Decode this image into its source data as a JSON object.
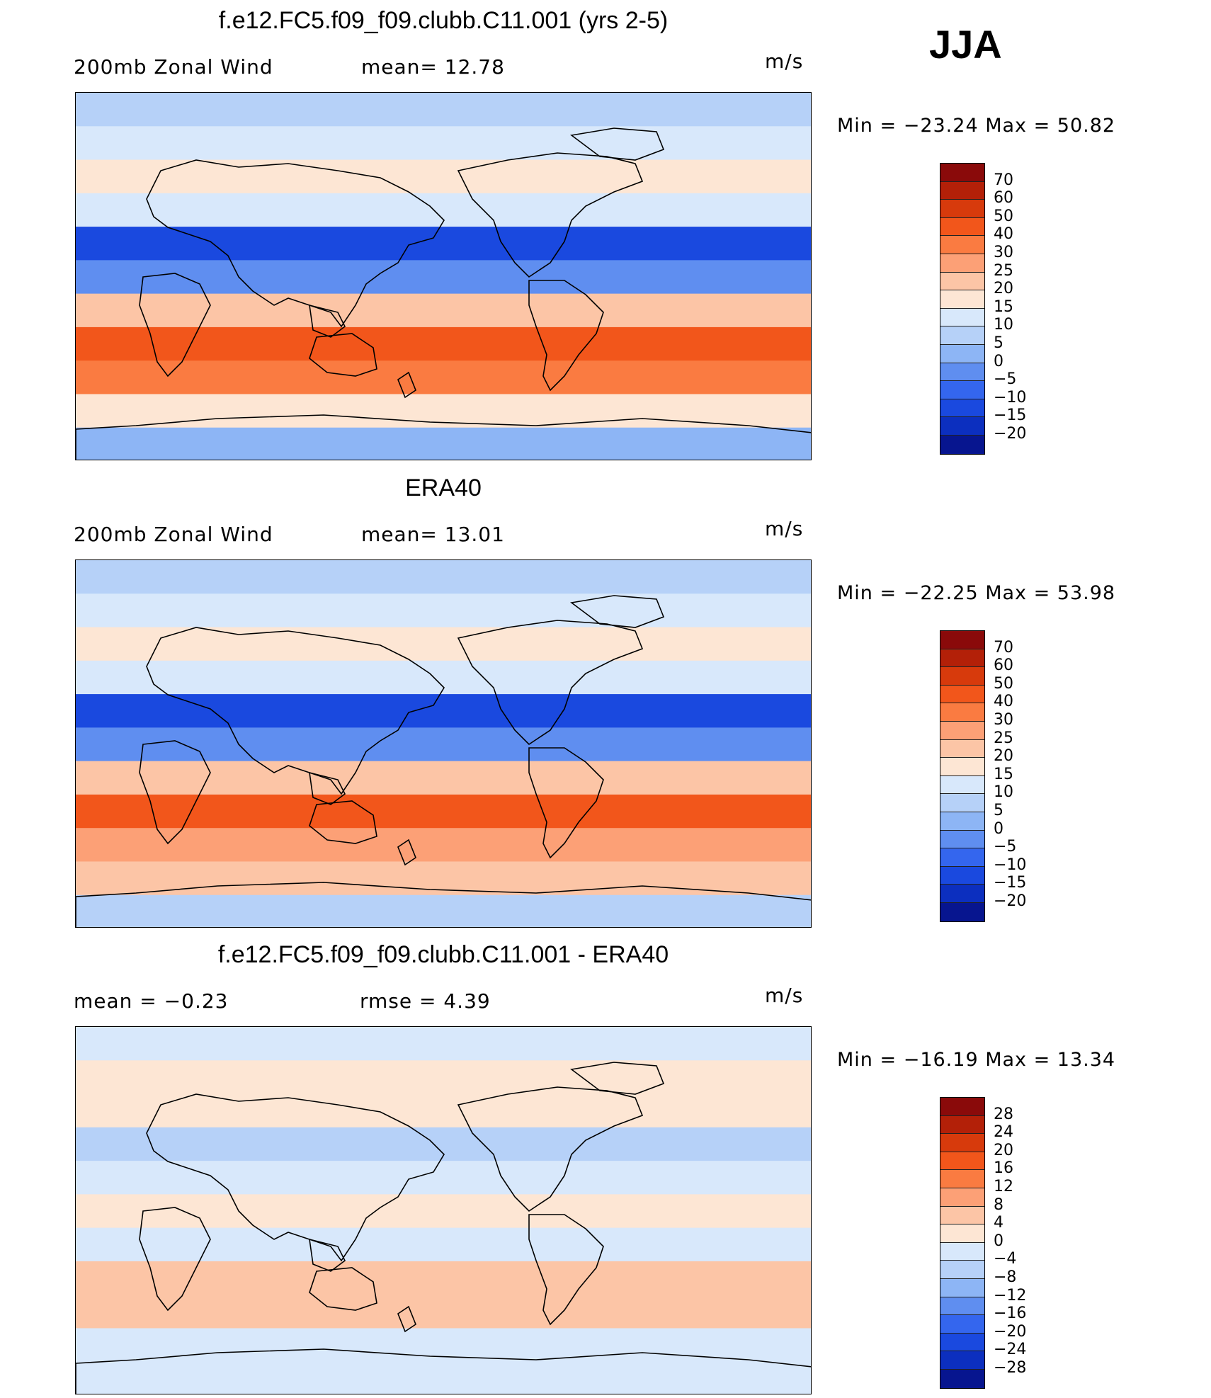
{
  "season": "JJA",
  "panels": [
    {
      "title": "f.e12.FC5.f09_f09.clubb.C11.001 (yrs 2-5)",
      "left_label": "200mb Zonal Wind",
      "stat1_label": "mean=",
      "stat1_value": "12.78",
      "stat2_label": "",
      "stat2_value": "",
      "units": "m/s",
      "min_label": "Min",
      "min_value": "−23.24",
      "max_label": "Max",
      "max_value": "50.82",
      "colorbar_levels": [
        "70",
        "60",
        "50",
        "40",
        "30",
        "25",
        "20",
        "15",
        "10",
        "5",
        "0",
        "−5",
        "−10",
        "−15",
        "−20"
      ],
      "colorbar_colors": [
        "#8a0a0a",
        "#b32008",
        "#d73a0c",
        "#f2561b",
        "#fa7b41",
        "#fca076",
        "#fcc5a6",
        "#fde6d4",
        "#d8e8fb",
        "#b6d1f8",
        "#8db5f5",
        "#5f8ef0",
        "#3466ee",
        "#1a49df",
        "#0c2fbf",
        "#07158f"
      ]
    },
    {
      "title": "ERA40",
      "left_label": "200mb Zonal Wind",
      "stat1_label": "mean=",
      "stat1_value": "13.01",
      "stat2_label": "",
      "stat2_value": "",
      "units": "m/s",
      "min_label": "Min",
      "min_value": "−22.25",
      "max_label": "Max",
      "max_value": "53.98",
      "colorbar_levels": [
        "70",
        "60",
        "50",
        "40",
        "30",
        "25",
        "20",
        "15",
        "10",
        "5",
        "0",
        "−5",
        "−10",
        "−15",
        "−20"
      ],
      "colorbar_colors": [
        "#8a0a0a",
        "#b32008",
        "#d73a0c",
        "#f2561b",
        "#fa7b41",
        "#fca076",
        "#fcc5a6",
        "#fde6d4",
        "#d8e8fb",
        "#b6d1f8",
        "#8db5f5",
        "#5f8ef0",
        "#3466ee",
        "#1a49df",
        "#0c2fbf",
        "#07158f"
      ]
    },
    {
      "title": "f.e12.FC5.f09_f09.clubb.C11.001 - ERA40",
      "left_label": "",
      "stat1_label": "mean =",
      "stat1_value": "−0.23",
      "stat2_label": "rmse =",
      "stat2_value": "4.39",
      "units": "m/s",
      "min_label": "Min",
      "min_value": "−16.19",
      "max_label": "Max",
      "max_value": "13.34",
      "colorbar_levels": [
        "28",
        "24",
        "20",
        "16",
        "12",
        "8",
        "4",
        "0",
        "−4",
        "−8",
        "−12",
        "−16",
        "−20",
        "−24",
        "−28"
      ],
      "colorbar_colors": [
        "#8a0a0a",
        "#b32008",
        "#d73a0c",
        "#f2561b",
        "#fa7b41",
        "#fca076",
        "#fcc5a6",
        "#fde6d4",
        "#d8e8fb",
        "#b6d1f8",
        "#8db5f5",
        "#5f8ef0",
        "#3466ee",
        "#1a49df",
        "#0c2fbf",
        "#07158f"
      ]
    }
  ],
  "chart_data": [
    {
      "type": "heatmap",
      "title": "f.e12.FC5.f09_f09.clubb.C11.001 (yrs 2-5)",
      "variable": "200mb Zonal Wind",
      "units": "m/s",
      "mean": 12.78,
      "min": -23.24,
      "max": 50.82,
      "levels": [
        -20,
        -15,
        -10,
        -5,
        0,
        5,
        10,
        15,
        20,
        25,
        30,
        40,
        50,
        60,
        70
      ],
      "lat_bands": [
        {
          "lat": 80,
          "value": 7
        },
        {
          "lat": 60,
          "value": 10
        },
        {
          "lat": 45,
          "value": 17
        },
        {
          "lat": 30,
          "value": 12
        },
        {
          "lat": 15,
          "value": -12
        },
        {
          "lat": 0,
          "value": -3
        },
        {
          "lat": -15,
          "value": 20
        },
        {
          "lat": -30,
          "value": 42
        },
        {
          "lat": -45,
          "value": 35
        },
        {
          "lat": -60,
          "value": 18
        },
        {
          "lat": -75,
          "value": 3
        }
      ]
    },
    {
      "type": "heatmap",
      "title": "ERA40",
      "variable": "200mb Zonal Wind",
      "units": "m/s",
      "mean": 13.01,
      "min": -22.25,
      "max": 53.98,
      "levels": [
        -20,
        -15,
        -10,
        -5,
        0,
        5,
        10,
        15,
        20,
        25,
        30,
        40,
        50,
        60,
        70
      ],
      "lat_bands": [
        {
          "lat": 80,
          "value": 6
        },
        {
          "lat": 60,
          "value": 10
        },
        {
          "lat": 45,
          "value": 18
        },
        {
          "lat": 30,
          "value": 12
        },
        {
          "lat": 15,
          "value": -14
        },
        {
          "lat": 0,
          "value": -5
        },
        {
          "lat": -15,
          "value": 22
        },
        {
          "lat": -30,
          "value": 42
        },
        {
          "lat": -45,
          "value": 28
        },
        {
          "lat": -60,
          "value": 20
        },
        {
          "lat": -75,
          "value": 5
        }
      ]
    },
    {
      "type": "heatmap",
      "title": "f.e12.FC5.f09_f09.clubb.C11.001 - ERA40",
      "units": "m/s",
      "mean": -0.23,
      "rmse": 4.39,
      "min": -16.19,
      "max": 13.34,
      "levels": [
        -28,
        -24,
        -20,
        -16,
        -12,
        -8,
        -4,
        0,
        4,
        8,
        12,
        16,
        20,
        24,
        28
      ],
      "lat_bands": [
        {
          "lat": 80,
          "value": -2
        },
        {
          "lat": 60,
          "value": 2
        },
        {
          "lat": 45,
          "value": 3
        },
        {
          "lat": 30,
          "value": -6
        },
        {
          "lat": 15,
          "value": -3
        },
        {
          "lat": 0,
          "value": 2
        },
        {
          "lat": -15,
          "value": -4
        },
        {
          "lat": -30,
          "value": 6
        },
        {
          "lat": -45,
          "value": 4
        },
        {
          "lat": -60,
          "value": -2
        },
        {
          "lat": -75,
          "value": -4
        }
      ]
    }
  ]
}
